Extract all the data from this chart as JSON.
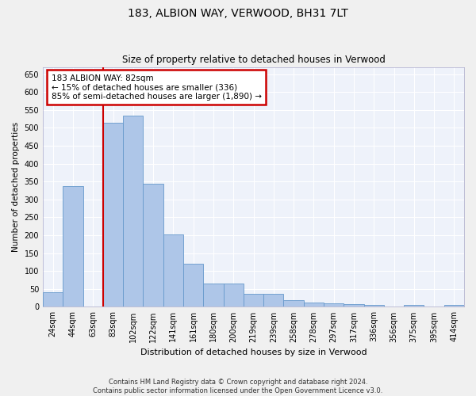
{
  "title": "183, ALBION WAY, VERWOOD, BH31 7LT",
  "subtitle": "Size of property relative to detached houses in Verwood",
  "xlabel": "Distribution of detached houses by size in Verwood",
  "ylabel": "Number of detached properties",
  "bar_color": "#aec6e8",
  "bar_edge_color": "#6699cc",
  "background_color": "#eef2fa",
  "grid_color": "#ffffff",
  "categories": [
    "24sqm",
    "44sqm",
    "63sqm",
    "83sqm",
    "102sqm",
    "122sqm",
    "141sqm",
    "161sqm",
    "180sqm",
    "200sqm",
    "219sqm",
    "239sqm",
    "258sqm",
    "278sqm",
    "297sqm",
    "317sqm",
    "336sqm",
    "356sqm",
    "375sqm",
    "395sqm",
    "414sqm"
  ],
  "values": [
    40,
    338,
    2,
    515,
    535,
    343,
    203,
    120,
    65,
    65,
    37,
    37,
    18,
    12,
    10,
    8,
    5,
    1,
    5,
    1,
    5
  ],
  "ylim": [
    0,
    670
  ],
  "yticks": [
    0,
    50,
    100,
    150,
    200,
    250,
    300,
    350,
    400,
    450,
    500,
    550,
    600,
    650
  ],
  "vline_bin_index": 3,
  "annotation_text": "183 ALBION WAY: 82sqm\n← 15% of detached houses are smaller (336)\n85% of semi-detached houses are larger (1,890) →",
  "annotation_box_color": "#ffffff",
  "annotation_box_edge": "#cc0000",
  "vline_color": "#cc0000",
  "footnote1": "Contains HM Land Registry data © Crown copyright and database right 2024.",
  "footnote2": "Contains public sector information licensed under the Open Government Licence v3.0.",
  "fig_width": 6.0,
  "fig_height": 5.0,
  "fig_dpi": 100
}
